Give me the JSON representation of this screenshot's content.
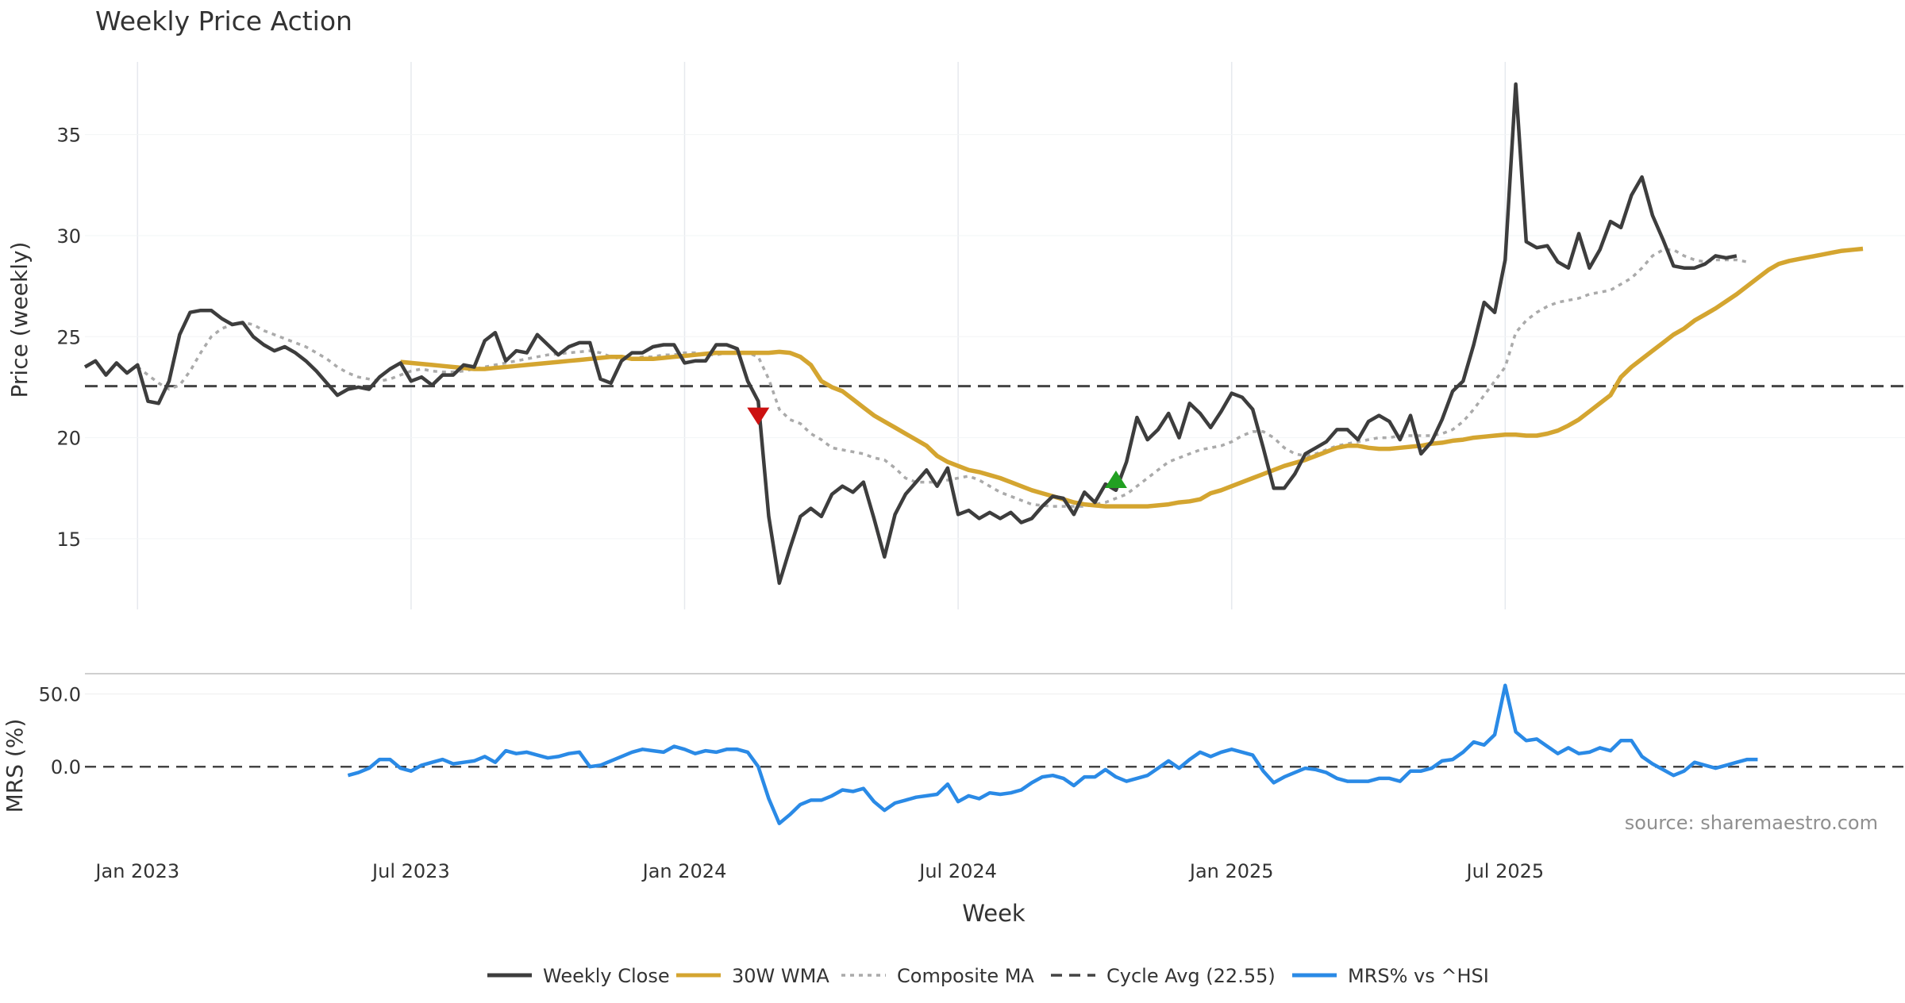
{
  "chart_data": {
    "type": "line",
    "title": "Weekly Price Action",
    "xlabel": "Week",
    "source_text": "source: sharemaestro.com",
    "x_ticks": [
      "Jan 2023",
      "Jul 2023",
      "Jan 2024",
      "Jul 2024",
      "Jan 2025",
      "Jul 2025"
    ],
    "week_count": 174,
    "colors": {
      "weekly_close": "#3d3d3d",
      "wma": "#d4a530",
      "composite": "#aaaaaa",
      "cycle_avg": "#444444",
      "mrs": "#2a8ae6",
      "sell_marker": "#cc1111",
      "buy_marker": "#22a022",
      "grid": "#e6e9ee"
    },
    "price_panel": {
      "ylabel": "Price (weekly)",
      "ylim": [
        11.5,
        38.6
      ],
      "yticks": [
        15,
        20,
        25,
        30,
        35
      ],
      "cycle_avg": 22.55,
      "series": [
        {
          "name": "Weekly Close",
          "start": 0,
          "values": [
            23.5,
            23.8,
            23.1,
            23.7,
            23.2,
            23.6,
            21.8,
            21.7,
            22.8,
            25.1,
            26.2,
            26.3,
            26.3,
            25.9,
            25.6,
            25.7,
            25.0,
            24.6,
            24.3,
            24.5,
            24.2,
            23.8,
            23.3,
            22.7,
            22.1,
            22.4,
            22.5,
            22.4,
            23.0,
            23.4,
            23.7,
            22.8,
            23.0,
            22.6,
            23.1,
            23.1,
            23.6,
            23.5,
            24.8,
            25.2,
            23.8,
            24.3,
            24.2,
            25.1,
            24.6,
            24.1,
            24.5,
            24.7,
            24.7,
            22.9,
            22.7,
            23.8,
            24.2,
            24.2,
            24.5,
            24.6,
            24.6,
            23.7,
            23.8,
            23.8,
            24.6,
            24.6,
            24.4,
            22.8,
            21.8,
            16.1,
            12.8,
            14.5,
            16.1,
            16.5,
            16.1,
            17.2,
            17.6,
            17.3,
            17.8,
            16.0,
            14.1,
            16.2,
            17.2,
            17.8,
            18.4,
            17.6,
            18.5,
            16.2,
            16.4,
            16.0,
            16.3,
            16.0,
            16.3,
            15.8,
            16.0,
            16.6,
            17.1,
            17.0,
            16.2,
            17.3,
            16.8,
            17.7,
            17.4,
            18.8,
            21.0,
            19.9,
            20.4,
            21.2,
            20.0,
            21.7,
            21.2,
            20.5,
            21.3,
            22.2,
            22.0,
            21.4,
            19.5,
            17.5,
            17.5,
            18.2,
            19.2,
            19.5,
            19.8,
            20.4,
            20.4,
            19.9,
            20.8,
            21.1,
            20.8,
            19.9,
            21.1,
            19.2,
            19.8,
            20.9,
            22.3,
            22.8,
            24.6,
            26.7,
            26.2,
            28.8,
            37.5,
            29.7,
            29.4,
            29.5,
            28.7,
            28.4,
            30.1,
            28.4,
            29.3,
            30.7,
            30.4,
            32.0,
            32.9,
            31.0,
            29.8,
            28.5,
            28.4,
            28.4,
            28.6,
            29.0,
            28.9,
            29.0
          ]
        },
        {
          "name": "30W WMA",
          "start": 30,
          "values": [
            23.75,
            23.7,
            23.65,
            23.6,
            23.55,
            23.5,
            23.45,
            23.4,
            23.4,
            23.45,
            23.5,
            23.55,
            23.6,
            23.65,
            23.7,
            23.75,
            23.8,
            23.85,
            23.9,
            23.95,
            24.0,
            24.0,
            23.9,
            23.9,
            23.9,
            23.95,
            24.0,
            24.05,
            24.1,
            24.15,
            24.2,
            24.2,
            24.2,
            24.2,
            24.2,
            24.2,
            24.25,
            24.2,
            24.0,
            23.6,
            22.8,
            22.5,
            22.3,
            21.9,
            21.5,
            21.1,
            20.8,
            20.5,
            20.2,
            19.9,
            19.6,
            19.1,
            18.8,
            18.6,
            18.4,
            18.3,
            18.15,
            18.0,
            17.8,
            17.6,
            17.4,
            17.25,
            17.1,
            16.95,
            16.8,
            16.7,
            16.65,
            16.6,
            16.6,
            16.6,
            16.6,
            16.6,
            16.65,
            16.7,
            16.8,
            16.85,
            16.95,
            17.25,
            17.4,
            17.6,
            17.8,
            18.0,
            18.2,
            18.4,
            18.6,
            18.75,
            18.9,
            19.1,
            19.3,
            19.5,
            19.6,
            19.6,
            19.5,
            19.45,
            19.45,
            19.5,
            19.55,
            19.6,
            19.7,
            19.75,
            19.85,
            19.9,
            20.0,
            20.05,
            20.1,
            20.15,
            20.15,
            20.1,
            20.1,
            20.2,
            20.35,
            20.6,
            20.9,
            21.3,
            21.7,
            22.1,
            23.0,
            23.5,
            23.9,
            24.3,
            24.7,
            25.1,
            25.4,
            25.8,
            26.1,
            26.4,
            26.75,
            27.1,
            27.5,
            27.9,
            28.3,
            28.6,
            28.75,
            28.85,
            28.95,
            29.05,
            29.15,
            29.25,
            29.3,
            29.35
          ]
        },
        {
          "name": "Composite MA",
          "start": 5,
          "values": [
            23.5,
            23.1,
            22.7,
            22.4,
            22.6,
            23.3,
            24.2,
            25.0,
            25.4,
            25.6,
            25.7,
            25.6,
            25.3,
            25.1,
            24.9,
            24.7,
            24.5,
            24.2,
            23.9,
            23.5,
            23.2,
            23.0,
            22.9,
            22.8,
            22.9,
            23.1,
            23.3,
            23.4,
            23.3,
            23.25,
            23.25,
            23.3,
            23.4,
            23.5,
            23.6,
            23.7,
            23.8,
            23.9,
            24.0,
            24.1,
            24.15,
            24.2,
            24.25,
            24.3,
            24.2,
            24.0,
            23.9,
            23.9,
            24.0,
            24.0,
            24.1,
            24.1,
            24.2,
            24.2,
            24.1,
            24.1,
            24.2,
            24.3,
            24.2,
            24.0,
            22.9,
            21.4,
            20.9,
            20.7,
            20.2,
            19.9,
            19.5,
            19.4,
            19.3,
            19.2,
            19.0,
            18.9,
            18.5,
            18.0,
            17.8,
            17.8,
            17.8,
            17.9,
            18.0,
            18.1,
            17.9,
            17.6,
            17.3,
            17.1,
            16.9,
            16.7,
            16.65,
            16.6,
            16.6,
            16.6,
            16.6,
            16.7,
            16.8,
            17.0,
            17.2,
            17.6,
            18.0,
            18.4,
            18.8,
            19.0,
            19.2,
            19.4,
            19.5,
            19.6,
            19.8,
            20.1,
            20.3,
            20.3,
            20.0,
            19.5,
            19.2,
            19.1,
            19.2,
            19.4,
            19.6,
            19.7,
            19.8,
            19.9,
            20.0,
            20.0,
            20.1,
            20.1,
            20.1,
            20.1,
            20.2,
            20.4,
            20.8,
            21.4,
            22.1,
            22.8,
            23.5,
            25.2,
            25.8,
            26.2,
            26.5,
            26.7,
            26.8,
            26.9,
            27.1,
            27.2,
            27.3,
            27.6,
            27.9,
            28.4,
            29.0,
            29.3,
            29.3,
            29.0,
            28.8,
            28.7,
            28.8,
            28.8,
            28.8,
            28.7
          ]
        }
      ],
      "markers": [
        {
          "type": "sell",
          "week": 64,
          "value": 21.1
        },
        {
          "type": "buy",
          "week": 98,
          "value": 17.9
        }
      ]
    },
    "mrs_panel": {
      "ylabel": "MRS (%)",
      "ylim": [
        -43,
        64
      ],
      "yticks": [
        0.0,
        50.0
      ],
      "ytick_labels": [
        "0.0",
        "50.0"
      ],
      "zero_line": 0.0,
      "series": [
        {
          "name": "MRS% vs ^HSI",
          "start": 25,
          "values": [
            -6,
            -4,
            -1,
            5,
            5,
            -1,
            -3,
            1,
            3,
            5,
            2,
            3,
            4,
            7,
            3,
            11,
            9,
            10,
            8,
            6,
            7,
            9,
            10,
            0,
            1,
            4,
            7,
            10,
            12,
            11,
            10,
            14,
            12,
            9,
            11,
            10,
            12,
            12,
            10,
            0,
            -22,
            -39,
            -33,
            -26,
            -23,
            -23,
            -20,
            -16,
            -17,
            -15,
            -24,
            -30,
            -25,
            -23,
            -21,
            -20,
            -19,
            -12,
            -24,
            -20,
            -22,
            -18,
            -19,
            -18,
            -16,
            -11,
            -7,
            -6,
            -8,
            -13,
            -7,
            -7,
            -2,
            -7,
            -10,
            -8,
            -6,
            -1,
            4,
            -1,
            5,
            10,
            7,
            10,
            12,
            10,
            8,
            -3,
            -11,
            -7,
            -4,
            -1,
            -2,
            -4,
            -8,
            -10,
            -10,
            -10,
            -8,
            -8,
            -10,
            -3,
            -3,
            -1,
            4,
            5,
            10,
            17,
            15,
            22,
            56,
            24,
            18,
            19,
            14,
            9,
            13,
            9,
            10,
            13,
            11,
            18,
            18,
            7,
            2,
            -2,
            -6,
            -3,
            3,
            1,
            -1,
            1,
            3,
            5,
            5
          ]
        }
      ]
    },
    "legend": [
      {
        "label": "Weekly Close",
        "style": "solid",
        "color_key": "weekly_close"
      },
      {
        "label": "30W WMA",
        "style": "solid",
        "color_key": "wma"
      },
      {
        "label": "Composite MA",
        "style": "dotted",
        "color_key": "composite"
      },
      {
        "label": "Cycle Avg (22.55)",
        "style": "dashed",
        "color_key": "cycle_avg"
      },
      {
        "label": "MRS% vs ^HSI",
        "style": "solid",
        "color_key": "mrs"
      }
    ]
  }
}
